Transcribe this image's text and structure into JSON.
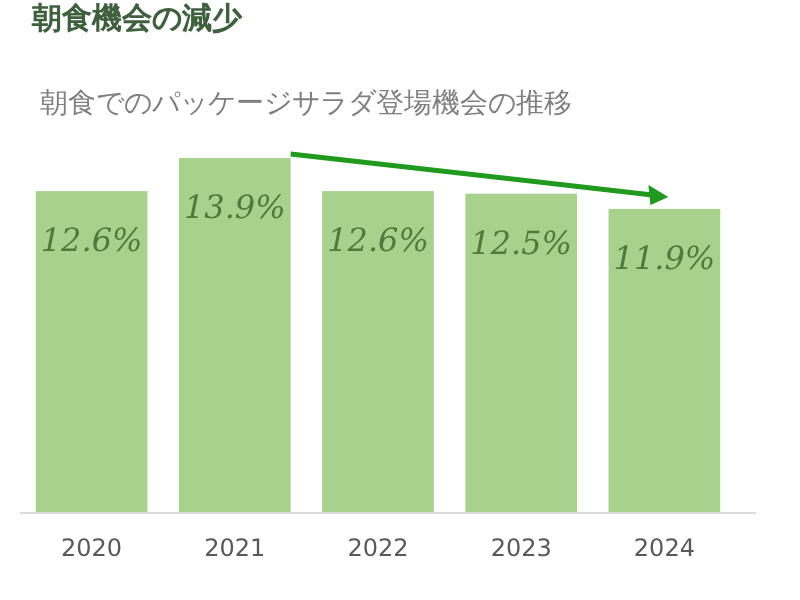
{
  "chart_data": {
    "type": "bar",
    "title": "朝食機会の減少",
    "subtitle": "朝食でのパッケージサラダ登場機会の推移",
    "categories": [
      "2020",
      "2021",
      "2022",
      "2023",
      "2024"
    ],
    "values": [
      12.6,
      13.9,
      12.6,
      12.5,
      11.9
    ],
    "value_labels": [
      "12.6%",
      "13.9%",
      "12.6%",
      "12.5%",
      "11.9%"
    ],
    "color": "#a9d18e"
  }
}
